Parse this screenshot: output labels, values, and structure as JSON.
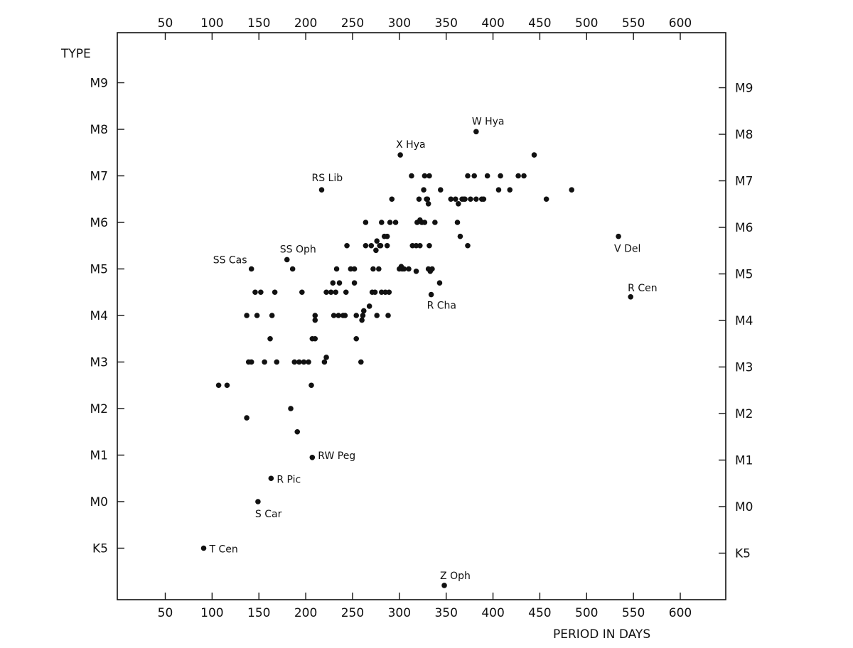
{
  "chart_data": {
    "type": "scatter",
    "xlabel": "PERIOD IN DAYS",
    "ylabel": "TYPE",
    "xlim": [
      0,
      660
    ],
    "x_ticks": [
      50,
      100,
      150,
      200,
      250,
      300,
      350,
      400,
      450,
      500,
      550,
      600
    ],
    "y_tick_labels": [
      "K5",
      "M0",
      "M1",
      "M2",
      "M3",
      "M4",
      "M5",
      "M6",
      "M7",
      "M8",
      "M9"
    ],
    "y_tick_values": [
      -1,
      0,
      1,
      2,
      3,
      4,
      5,
      6,
      7,
      8,
      9
    ],
    "ylim": [
      -2.0,
      10.0
    ],
    "grid": false,
    "labeled_points": [
      {
        "label": "T Cen",
        "x": 91,
        "y": -1.0
      },
      {
        "label": "S Car",
        "x": 149,
        "y": 0.0
      },
      {
        "label": "R Pic",
        "x": 163,
        "y": 0.5
      },
      {
        "label": "RW Peg",
        "x": 207,
        "y": 0.95
      },
      {
        "label": "SS Cas",
        "x": 142,
        "y": 5.0
      },
      {
        "label": "SS Oph",
        "x": 180,
        "y": 5.2
      },
      {
        "label": "RS Lib",
        "x": 217,
        "y": 6.7
      },
      {
        "label": "X Hya",
        "x": 301,
        "y": 7.45
      },
      {
        "label": "W Hya",
        "x": 382,
        "y": 7.95
      },
      {
        "label": "R Cha",
        "x": 334,
        "y": 4.45
      },
      {
        "label": "V Del",
        "x": 534,
        "y": 5.7
      },
      {
        "label": "R Cen",
        "x": 547,
        "y": 4.4
      },
      {
        "label": "Z Oph",
        "x": 348,
        "y": -1.8
      }
    ],
    "points": [
      [
        107,
        2.5
      ],
      [
        116,
        2.5
      ],
      [
        137,
        1.8
      ],
      [
        137,
        4.0
      ],
      [
        139,
        3.0
      ],
      [
        142,
        3.0
      ],
      [
        146,
        4.5
      ],
      [
        148,
        4.0
      ],
      [
        152,
        4.5
      ],
      [
        156,
        3.0
      ],
      [
        162,
        3.5
      ],
      [
        164,
        4.0
      ],
      [
        167,
        4.5
      ],
      [
        169,
        3.0
      ],
      [
        184,
        2.0
      ],
      [
        186,
        5.0
      ],
      [
        188,
        3.0
      ],
      [
        191,
        1.5
      ],
      [
        193,
        3.0
      ],
      [
        196,
        4.5
      ],
      [
        198,
        3.0
      ],
      [
        203,
        3.0
      ],
      [
        206,
        2.5
      ],
      [
        207,
        3.5
      ],
      [
        210,
        3.5
      ],
      [
        210,
        3.9
      ],
      [
        210,
        4.0
      ],
      [
        220,
        3.0
      ],
      [
        222,
        3.1
      ],
      [
        222,
        4.5
      ],
      [
        227,
        4.5
      ],
      [
        229,
        4.7
      ],
      [
        230,
        4.0
      ],
      [
        232,
        4.5
      ],
      [
        233,
        5.0
      ],
      [
        235,
        4.0
      ],
      [
        236,
        4.7
      ],
      [
        240,
        4.0
      ],
      [
        242,
        4.0
      ],
      [
        243,
        4.5
      ],
      [
        244,
        5.5
      ],
      [
        248,
        5.0
      ],
      [
        252,
        5.0
      ],
      [
        252,
        4.7
      ],
      [
        254,
        3.5
      ],
      [
        254,
        4.0
      ],
      [
        259,
        3.0
      ],
      [
        260,
        3.9
      ],
      [
        261,
        4.0
      ],
      [
        262,
        4.1
      ],
      [
        264,
        6.0
      ],
      [
        264,
        5.5
      ],
      [
        268,
        4.2
      ],
      [
        270,
        5.5
      ],
      [
        271,
        4.5
      ],
      [
        272,
        5.0
      ],
      [
        274,
        4.5
      ],
      [
        275,
        5.4
      ],
      [
        276,
        5.6
      ],
      [
        276,
        4.0
      ],
      [
        278,
        5.0
      ],
      [
        279,
        5.5
      ],
      [
        280,
        5.5
      ],
      [
        281,
        6.0
      ],
      [
        281,
        4.5
      ],
      [
        284,
        5.7
      ],
      [
        285,
        4.5
      ],
      [
        287,
        5.5
      ],
      [
        287,
        5.7
      ],
      [
        288,
        4.0
      ],
      [
        289,
        4.5
      ],
      [
        290,
        6.0
      ],
      [
        292,
        6.5
      ],
      [
        296,
        6.0
      ],
      [
        300,
        5.0
      ],
      [
        302,
        5.05
      ],
      [
        303,
        5.0
      ],
      [
        305,
        5.0
      ],
      [
        310,
        5.0
      ],
      [
        313,
        7.0
      ],
      [
        314,
        5.5
      ],
      [
        318,
        5.5
      ],
      [
        318,
        4.95
      ],
      [
        319,
        6.0
      ],
      [
        321,
        6.5
      ],
      [
        322,
        6.05
      ],
      [
        322,
        5.5
      ],
      [
        324,
        6.0
      ],
      [
        326,
        6.7
      ],
      [
        327,
        6.0
      ],
      [
        327,
        7.0
      ],
      [
        329,
        6.5
      ],
      [
        330,
        6.5
      ],
      [
        331,
        6.4
      ],
      [
        331,
        5.0
      ],
      [
        332,
        5.5
      ],
      [
        332,
        7.0
      ],
      [
        333,
        4.95
      ],
      [
        335,
        5.0
      ],
      [
        338,
        6.0
      ],
      [
        343,
        4.7
      ],
      [
        344,
        6.7
      ],
      [
        355,
        6.5
      ],
      [
        360,
        6.5
      ],
      [
        362,
        6.0
      ],
      [
        363,
        6.4
      ],
      [
        365,
        5.7
      ],
      [
        367,
        6.5
      ],
      [
        369,
        6.5
      ],
      [
        370,
        6.5
      ],
      [
        373,
        5.5
      ],
      [
        373,
        7.0
      ],
      [
        376,
        6.5
      ],
      [
        380,
        7.0
      ],
      [
        382,
        6.5
      ],
      [
        388,
        6.5
      ],
      [
        390,
        6.5
      ],
      [
        394,
        7.0
      ],
      [
        406,
        6.7
      ],
      [
        408,
        7.0
      ],
      [
        418,
        6.7
      ],
      [
        427,
        7.0
      ],
      [
        433,
        7.0
      ],
      [
        444,
        7.45
      ],
      [
        457,
        6.5
      ],
      [
        484,
        6.7
      ]
    ]
  }
}
